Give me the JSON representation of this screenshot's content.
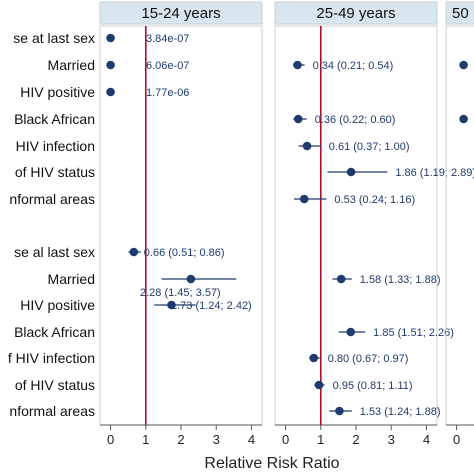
{
  "chart_data": {
    "type": "scatter",
    "subtype": "forest-plot",
    "xlabel": "Relative Risk Ratio",
    "xlim": [
      -0.3,
      4.3
    ],
    "xticks": [
      0,
      1,
      2,
      3,
      4
    ],
    "reference_line": 1,
    "reference_color": "#a8102e",
    "point_color": "#1f3b6e",
    "strip_color": "#d9e6ef",
    "grid": false,
    "row_labels": [
      "se at last sex",
      "Married",
      "HIV positive",
      "Black African",
      "HIV infection",
      "of HIV status",
      "nformal areas",
      "se al last sex",
      "Married",
      "HIV positive",
      "Black African",
      "f HIV infection",
      "of HIV status",
      "nformal areas"
    ],
    "panels": [
      {
        "title": "15-24 years",
        "points": [
          {
            "row": 0,
            "value": 4e-07,
            "lower": null,
            "upper": null,
            "label": "3.84e-07"
          },
          {
            "row": 1,
            "value": 6e-07,
            "lower": null,
            "upper": null,
            "label": "6.06e-07"
          },
          {
            "row": 2,
            "value": 1.8e-06,
            "lower": null,
            "upper": null,
            "label": "1.77e-06"
          },
          {
            "row": 7,
            "value": 0.66,
            "lower": 0.51,
            "upper": 0.86,
            "label": "0.66 (0.51; 0.86)"
          },
          {
            "row": 8,
            "value": 2.28,
            "lower": 1.45,
            "upper": 3.57,
            "label": "2.28 (1.45; 3.57)"
          },
          {
            "row": 9,
            "value": 1.73,
            "lower": 1.24,
            "upper": 2.42,
            "label": "1.73 (1.24; 2.42)"
          }
        ]
      },
      {
        "title": "25-49 years",
        "points": [
          {
            "row": 1,
            "value": 0.34,
            "lower": 0.21,
            "upper": 0.54,
            "label": "0.34 (0.21; 0.54)"
          },
          {
            "row": 3,
            "value": 0.36,
            "lower": 0.22,
            "upper": 0.6,
            "label": "0.36 (0.22; 0.60)"
          },
          {
            "row": 4,
            "value": 0.61,
            "lower": 0.37,
            "upper": 1.0,
            "label": "0.61 (0.37; 1.00)"
          },
          {
            "row": 5,
            "value": 1.86,
            "lower": 1.19,
            "upper": 2.89,
            "label": "1.86 (1.19; 2.89)"
          },
          {
            "row": 6,
            "value": 0.53,
            "lower": 0.24,
            "upper": 1.16,
            "label": "0.53 (0.24; 1.16)"
          },
          {
            "row": 8,
            "value": 1.58,
            "lower": 1.33,
            "upper": 1.88,
            "label": "1.58 (1.33; 1.88)"
          },
          {
            "row": 10,
            "value": 1.85,
            "lower": 1.51,
            "upper": 2.26,
            "label": "1.85 (1.51; 2.26)"
          },
          {
            "row": 11,
            "value": 0.8,
            "lower": 0.67,
            "upper": 0.97,
            "label": "0.80 (0.67; 0.97)"
          },
          {
            "row": 12,
            "value": 0.95,
            "lower": 0.81,
            "upper": 1.11,
            "label": "0.95 (0.81; 1.11)"
          },
          {
            "row": 13,
            "value": 1.53,
            "lower": 1.24,
            "upper": 1.88,
            "label": "1.53 (1.24; 1.88)"
          }
        ]
      },
      {
        "title": "50",
        "points": [
          {
            "row": 1,
            "value": 0.2,
            "lower": null,
            "upper": null,
            "label": ""
          },
          {
            "row": 3,
            "value": 0.2,
            "lower": null,
            "upper": null,
            "label": ""
          }
        ]
      }
    ]
  }
}
